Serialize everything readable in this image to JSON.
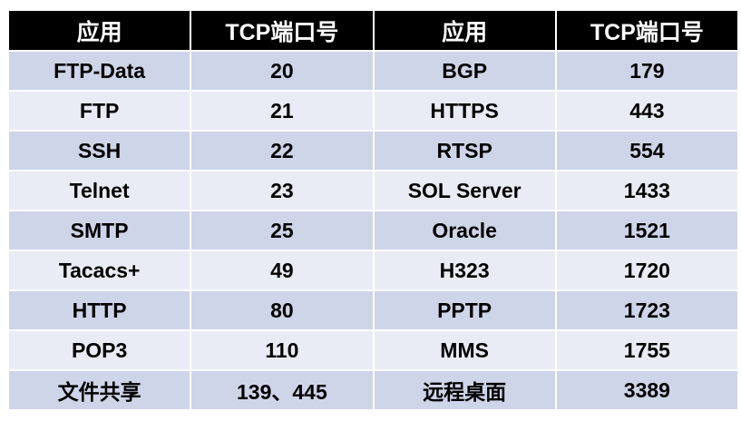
{
  "table": {
    "header": [
      "应用",
      "TCP端口号",
      "应用",
      "TCP端口号"
    ],
    "rows": [
      [
        "FTP-Data",
        "20",
        "BGP",
        "179"
      ],
      [
        "FTP",
        "21",
        "HTTPS",
        "443"
      ],
      [
        "SSH",
        "22",
        "RTSP",
        "554"
      ],
      [
        "Telnet",
        "23",
        "SOL Server",
        "1433"
      ],
      [
        "SMTP",
        "25",
        "Oracle",
        "1521"
      ],
      [
        "Tacacs+",
        "49",
        "H323",
        "1720"
      ],
      [
        "HTTP",
        "80",
        "PPTP",
        "1723"
      ],
      [
        "POP3",
        "110",
        "MMS",
        "1755"
      ],
      [
        "文件共享",
        "139、445",
        "远程桌面",
        "3389"
      ]
    ]
  }
}
